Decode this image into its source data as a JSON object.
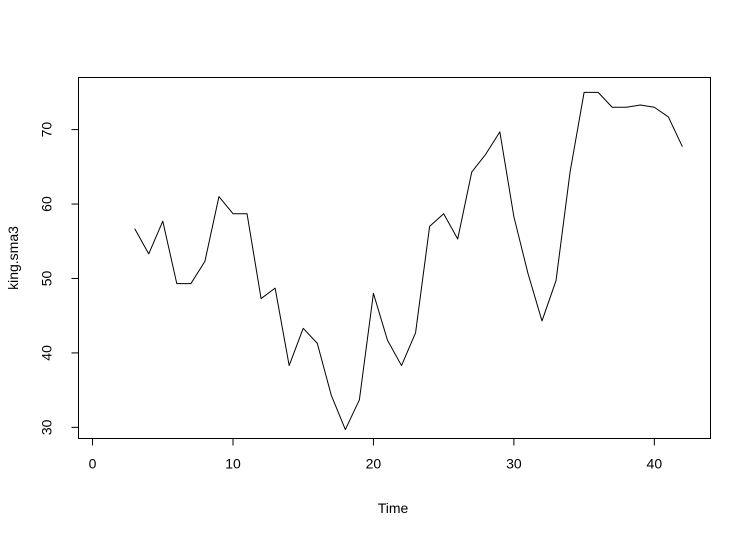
{
  "chart_data": {
    "type": "line",
    "title": "",
    "xlabel": "Time",
    "ylabel": "king.sma3",
    "xlim": [
      -1,
      44
    ],
    "ylim": [
      28.5,
      77
    ],
    "xticks": [
      0,
      10,
      20,
      30,
      40
    ],
    "xtick_labels": [
      "0",
      "10",
      "20",
      "30",
      "40"
    ],
    "yticks": [
      30,
      40,
      50,
      60,
      70
    ],
    "ytick_labels": [
      "30",
      "40",
      "50",
      "60",
      "70"
    ],
    "grid": false,
    "legend": "none",
    "line_color": "#000000",
    "series": [
      {
        "x": [
          3,
          4,
          5,
          6,
          7,
          8,
          9,
          10,
          11,
          12,
          13,
          14,
          15,
          16,
          17,
          18,
          19,
          20,
          21,
          22,
          23,
          24,
          25,
          26,
          27,
          28,
          29,
          30,
          31,
          32,
          33,
          34,
          35,
          36,
          37,
          38,
          39,
          40,
          41,
          42
        ],
        "values": [
          56.7,
          53.3,
          57.7,
          49.3,
          49.3,
          52.3,
          61.0,
          58.7,
          58.7,
          47.3,
          48.7,
          38.3,
          43.3,
          41.3,
          34.3,
          29.7,
          33.7,
          48.0,
          41.7,
          38.3,
          42.7,
          57.0,
          58.7,
          55.3,
          64.3,
          66.7,
          69.7,
          58.3,
          50.7,
          44.3,
          49.7,
          64.3,
          75.0,
          75.0,
          73.0,
          73.0,
          73.3,
          73.0,
          71.7,
          67.7
        ]
      }
    ]
  }
}
